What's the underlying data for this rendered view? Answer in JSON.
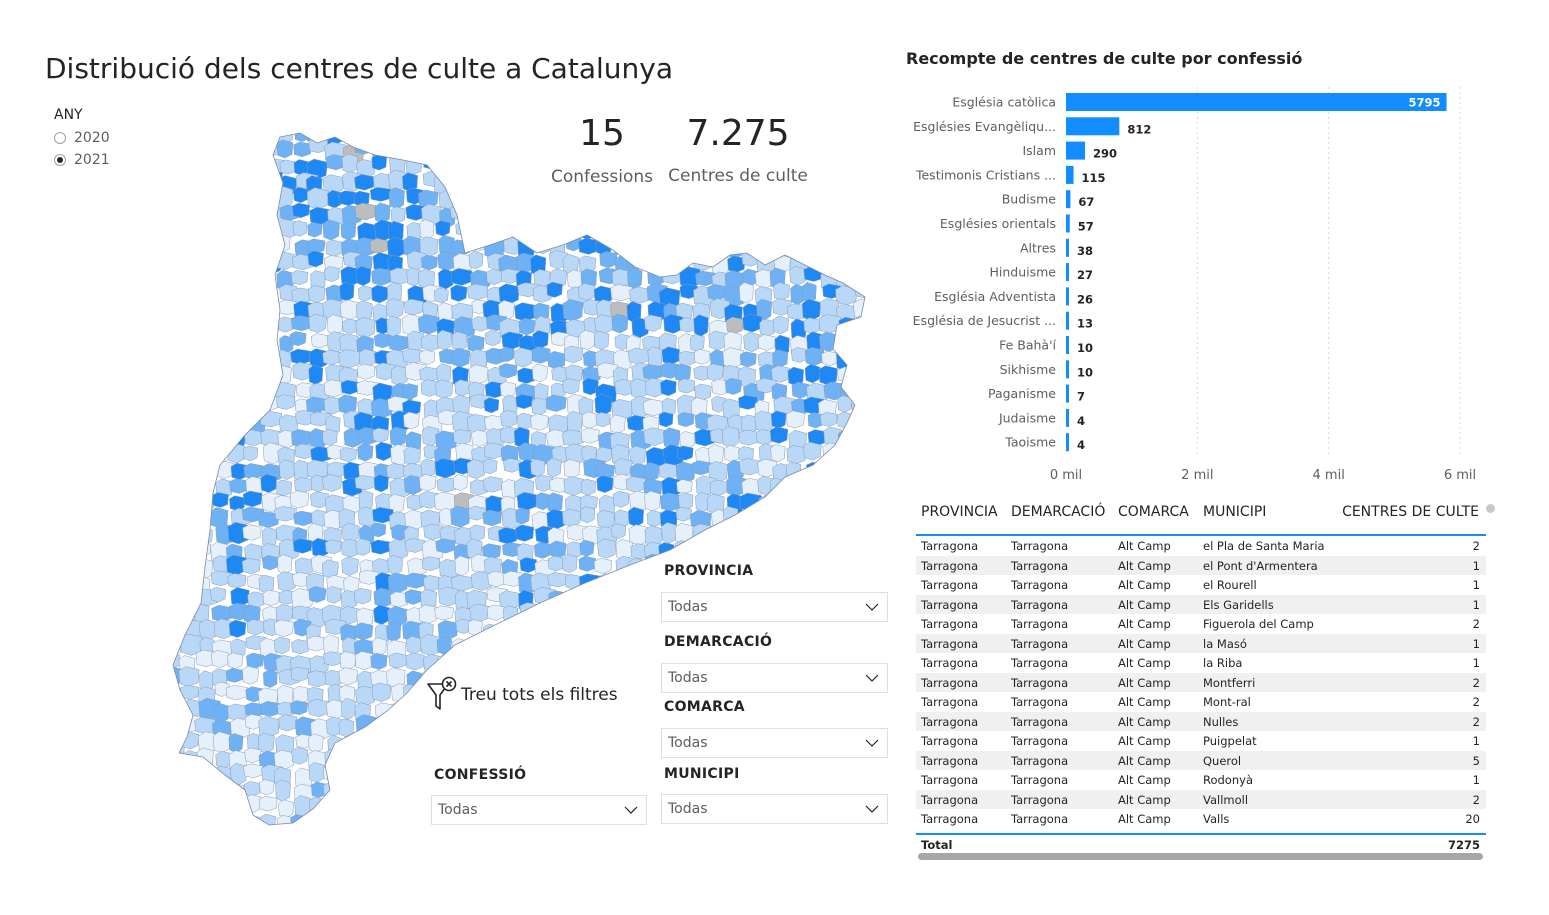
{
  "title": "Distribució dels centres de culte a Catalunya",
  "year_slicer": {
    "label": "ANY",
    "options": [
      {
        "label": "2020",
        "selected": false
      },
      {
        "label": "2021",
        "selected": true
      }
    ]
  },
  "kpis": {
    "confessions": {
      "value": "15",
      "label": "Confessions"
    },
    "centres": {
      "value": "7.275",
      "label": "Centres de culte"
    }
  },
  "slicers": {
    "provincia": {
      "label": "PROVINCIA",
      "value": "Todas"
    },
    "demarcacio": {
      "label": "DEMARCACIÓ",
      "value": "Todas"
    },
    "comarca": {
      "label": "COMARCA",
      "value": "Todas"
    },
    "municipi": {
      "label": "MUNICIPI",
      "value": "Todas"
    },
    "confessio": {
      "label": "CONFESSIÓ",
      "value": "Todas"
    }
  },
  "clear_filters_label": "Treu tots els filtres",
  "colors": {
    "bar": "#118dff",
    "map_dark": "#1e88f5",
    "map_mid": "#6fb1f5",
    "map_light": "#b9d8f8",
    "map_pale": "#e6f0fb",
    "map_grey": "#bdbdbd"
  },
  "chart_data": {
    "type": "bar",
    "orientation": "horizontal",
    "title": "Recompte de centres de culte por confessió",
    "categories": [
      "Església catòlica",
      "Esglésies Evangèliqu...",
      "Islam",
      "Testimonis Cristians ...",
      "Budisme",
      "Esglésies orientals",
      "Altres",
      "Hinduisme",
      "Església Adventista",
      "Església de Jesucrist ...",
      "Fe Bahà'í",
      "Sikhisme",
      "Paganisme",
      "Judaisme",
      "Taoisme"
    ],
    "values": [
      5795,
      812,
      290,
      115,
      67,
      57,
      38,
      27,
      26,
      13,
      10,
      10,
      7,
      4,
      4
    ],
    "xlim": [
      0,
      6000
    ],
    "x_ticks": [
      0,
      2000,
      4000,
      6000
    ],
    "x_tick_labels": [
      "0 mil",
      "2 mil",
      "4 mil",
      "6 mil"
    ],
    "grid": true
  },
  "table": {
    "columns": [
      "PROVINCIA",
      "DEMARCACIÓ",
      "COMARCA",
      "MUNICIPI",
      "CENTRES DE CULTE"
    ],
    "rows": [
      [
        "Tarragona",
        "Tarragona",
        "Alt Camp",
        "el Pla de Santa Maria",
        "2"
      ],
      [
        "Tarragona",
        "Tarragona",
        "Alt Camp",
        "el Pont d'Armentera",
        "1"
      ],
      [
        "Tarragona",
        "Tarragona",
        "Alt Camp",
        "el Rourell",
        "1"
      ],
      [
        "Tarragona",
        "Tarragona",
        "Alt Camp",
        "Els Garidells",
        "1"
      ],
      [
        "Tarragona",
        "Tarragona",
        "Alt Camp",
        "Figuerola del Camp",
        "2"
      ],
      [
        "Tarragona",
        "Tarragona",
        "Alt Camp",
        "la Masó",
        "1"
      ],
      [
        "Tarragona",
        "Tarragona",
        "Alt Camp",
        "la Riba",
        "1"
      ],
      [
        "Tarragona",
        "Tarragona",
        "Alt Camp",
        "Montferri",
        "2"
      ],
      [
        "Tarragona",
        "Tarragona",
        "Alt Camp",
        "Mont-ral",
        "2"
      ],
      [
        "Tarragona",
        "Tarragona",
        "Alt Camp",
        "Nulles",
        "2"
      ],
      [
        "Tarragona",
        "Tarragona",
        "Alt Camp",
        "Puigpelat",
        "1"
      ],
      [
        "Tarragona",
        "Tarragona",
        "Alt Camp",
        "Querol",
        "5"
      ],
      [
        "Tarragona",
        "Tarragona",
        "Alt Camp",
        "Rodonyà",
        "1"
      ],
      [
        "Tarragona",
        "Tarragona",
        "Alt Camp",
        "Vallmoll",
        "2"
      ],
      [
        "Tarragona",
        "Tarragona",
        "Alt Camp",
        "Valls",
        "20"
      ]
    ],
    "total_label": "Total",
    "total_value": "7275"
  }
}
